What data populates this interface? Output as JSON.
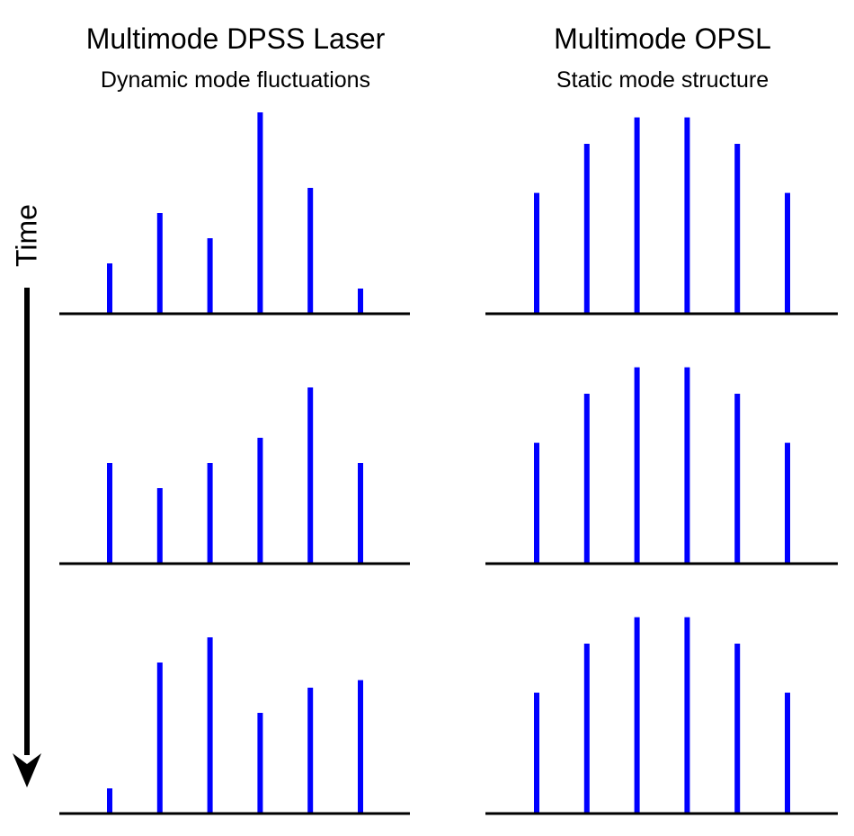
{
  "time_label": "Time",
  "columns": [
    {
      "title": "Multimode DPSS Laser",
      "subtitle": "Dynamic mode fluctuations",
      "panels": [
        {
          "values": [
            2,
            4,
            3,
            8,
            5,
            1
          ]
        },
        {
          "values": [
            4,
            3,
            4,
            5,
            7,
            4
          ]
        },
        {
          "values": [
            1,
            6,
            7,
            4,
            5,
            5.3
          ]
        }
      ]
    },
    {
      "title": "Multimode OPSL",
      "subtitle": "Static mode structure",
      "panels": [
        {
          "values": [
            4.8,
            6.75,
            7.8,
            7.8,
            6.75,
            4.8
          ]
        },
        {
          "values": [
            4.8,
            6.75,
            7.8,
            7.8,
            6.75,
            4.8
          ]
        },
        {
          "values": [
            4.8,
            6.75,
            7.8,
            7.8,
            6.75,
            4.8
          ]
        }
      ]
    }
  ]
}
